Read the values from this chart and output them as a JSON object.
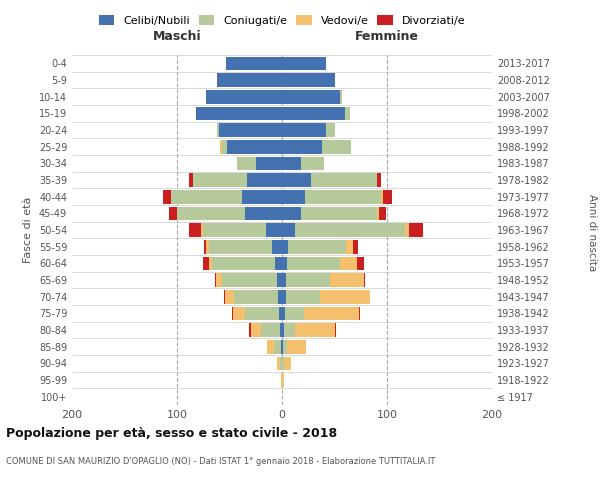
{
  "age_groups": [
    "100+",
    "95-99",
    "90-94",
    "85-89",
    "80-84",
    "75-79",
    "70-74",
    "65-69",
    "60-64",
    "55-59",
    "50-54",
    "45-49",
    "40-44",
    "35-39",
    "30-34",
    "25-29",
    "20-24",
    "15-19",
    "10-14",
    "5-9",
    "0-4"
  ],
  "birth_years": [
    "≤ 1917",
    "1918-1922",
    "1923-1927",
    "1928-1932",
    "1933-1937",
    "1938-1942",
    "1943-1947",
    "1948-1952",
    "1953-1957",
    "1958-1962",
    "1963-1967",
    "1968-1972",
    "1973-1977",
    "1978-1982",
    "1983-1987",
    "1988-1992",
    "1993-1997",
    "1998-2002",
    "2003-2007",
    "2008-2012",
    "2013-2017"
  ],
  "male_celibi": [
    0,
    0,
    0,
    1,
    2,
    3,
    4,
    5,
    7,
    10,
    15,
    35,
    38,
    33,
    25,
    52,
    60,
    82,
    72,
    62,
    53
  ],
  "male_coniugati": [
    0,
    0,
    2,
    7,
    18,
    32,
    42,
    52,
    60,
    60,
    60,
    65,
    68,
    52,
    18,
    5,
    2,
    0,
    0,
    0,
    0
  ],
  "male_vedovi": [
    0,
    1,
    3,
    6,
    10,
    12,
    8,
    6,
    3,
    2,
    2,
    0,
    0,
    0,
    0,
    2,
    0,
    0,
    0,
    0,
    0
  ],
  "male_divorziati": [
    0,
    0,
    0,
    0,
    1,
    1,
    1,
    1,
    5,
    2,
    12,
    8,
    7,
    4,
    0,
    0,
    0,
    0,
    0,
    0,
    0
  ],
  "female_celibi": [
    0,
    0,
    0,
    1,
    2,
    3,
    4,
    4,
    5,
    6,
    12,
    18,
    22,
    28,
    18,
    38,
    42,
    60,
    55,
    50,
    42
  ],
  "female_coniugati": [
    0,
    0,
    2,
    4,
    10,
    18,
    32,
    42,
    50,
    55,
    105,
    72,
    72,
    62,
    22,
    28,
    8,
    5,
    2,
    0,
    0
  ],
  "female_vedovi": [
    0,
    2,
    7,
    18,
    38,
    52,
    48,
    32,
    16,
    7,
    4,
    2,
    2,
    0,
    0,
    0,
    0,
    0,
    0,
    0,
    0
  ],
  "female_divorziati": [
    0,
    0,
    0,
    0,
    1,
    1,
    0,
    1,
    7,
    4,
    13,
    7,
    9,
    4,
    0,
    0,
    0,
    0,
    0,
    0,
    0
  ],
  "color_celibi": "#4472b0",
  "color_coniugati": "#b5c99a",
  "color_vedovi": "#f4c06e",
  "color_divorziati": "#cc2020",
  "title": "Popolazione per età, sesso e stato civile - 2018",
  "subtitle": "COMUNE DI SAN MAURIZIO D'OPAGLIO (NO) - Dati ISTAT 1° gennaio 2018 - Elaborazione TUTTITALIA.IT",
  "ylabel_left": "Fasce di età",
  "ylabel_right": "Anni di nascita",
  "xlabel_maschi": "Maschi",
  "xlabel_femmine": "Femmine",
  "xlim": 200,
  "legend_labels": [
    "Celibi/Nubili",
    "Coniugati/e",
    "Vedovi/e",
    "Divorziati/e"
  ]
}
